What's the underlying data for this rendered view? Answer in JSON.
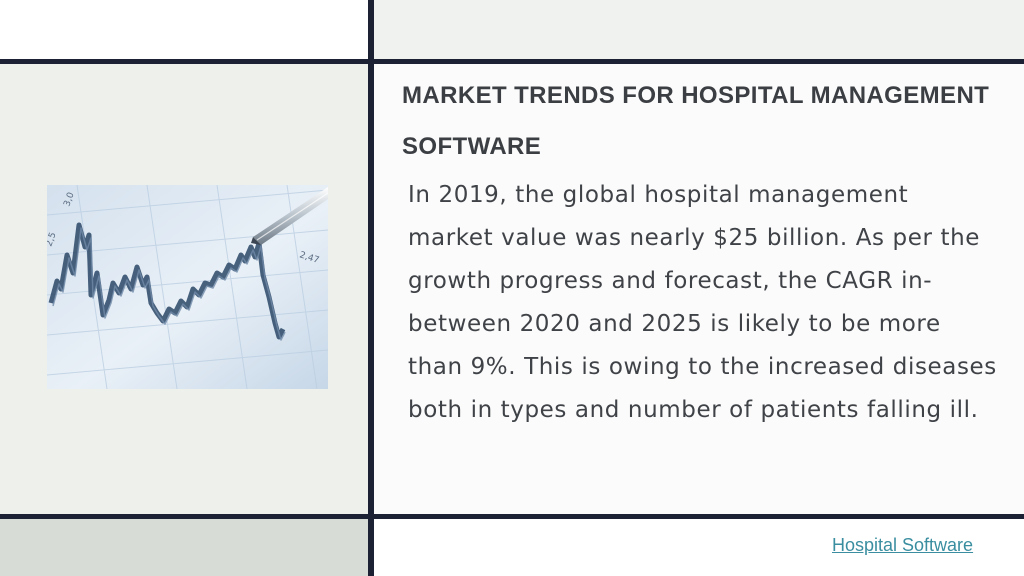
{
  "slide": {
    "title": "MARKET TRENDS FOR HOSPITAL MANAGEMENT SOFTWARE",
    "body": "In 2019, the global hospital management market value was nearly $25 billion. As per the growth progress and forecast, the CAGR in-between 2020 and 2025 is likely to be more than 9%. This is owing to the increased diseases both in types and number of patients falling ill."
  },
  "image": {
    "icon": "stock-chart-with-pen-photo",
    "labels": [
      "2,47",
      "2,5",
      "3,0"
    ]
  },
  "footer": {
    "link_text": "Hospital Software"
  },
  "colors": {
    "divider": "#1c2233",
    "title": "#3b3e42",
    "body": "#3f4247",
    "link": "#3a8ea0"
  }
}
